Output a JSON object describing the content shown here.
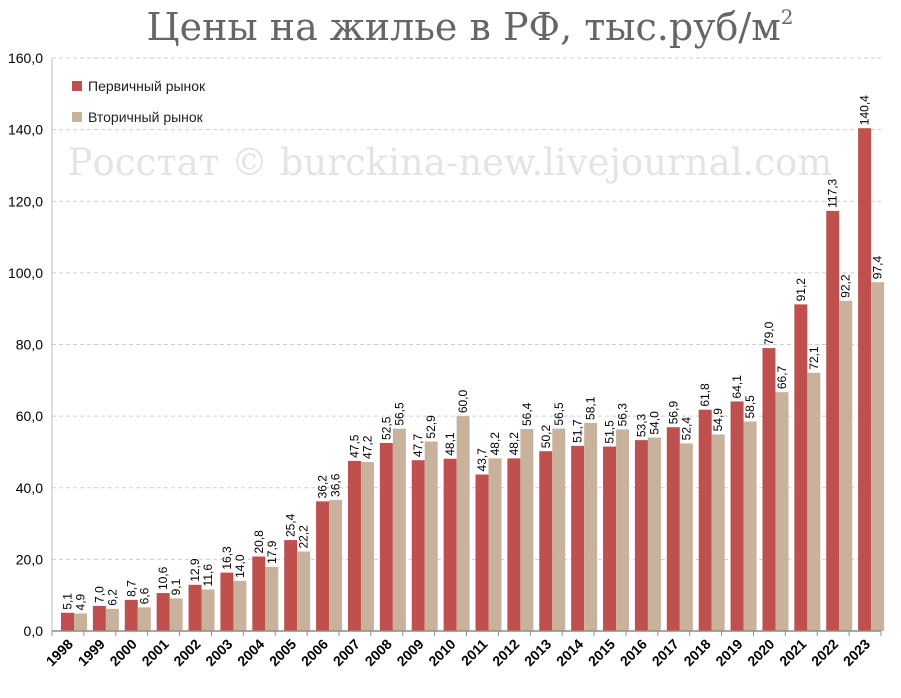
{
  "chart_data": {
    "type": "bar",
    "title": "Цены на жилье в РФ, тыс.руб/м",
    "title_superscript": "2",
    "watermark": "Росстат © burckina-new.livejournal.com",
    "categories": [
      "1998",
      "1999",
      "2000",
      "2001",
      "2002",
      "2003",
      "2004",
      "2005",
      "2006",
      "2007",
      "2008",
      "2009",
      "2010",
      "2011",
      "2012",
      "2013",
      "2014",
      "2015",
      "2016",
      "2017",
      "2018",
      "2019",
      "2020",
      "2021",
      "2022",
      "2023"
    ],
    "series": [
      {
        "name": "Первичный рынок",
        "color": "#c0504d",
        "values": [
          5.1,
          7.0,
          8.7,
          10.6,
          12.9,
          16.3,
          20.8,
          25.4,
          36.2,
          47.5,
          52.5,
          47.7,
          48.1,
          43.7,
          48.2,
          50.2,
          51.7,
          51.5,
          53.3,
          56.9,
          61.8,
          64.1,
          79.0,
          91.2,
          117.3,
          140.4
        ],
        "labels": [
          "5,1",
          "7,0",
          "8,7",
          "10,6",
          "12,9",
          "16,3",
          "20,8",
          "25,4",
          "36,2",
          "47,5",
          "52,5",
          "47,7",
          "48,1",
          "43,7",
          "48,2",
          "50,2",
          "51,7",
          "51,5",
          "53,3",
          "56,9",
          "61,8",
          "64,1",
          "79,0",
          "91,2",
          "117,3",
          "140,4"
        ]
      },
      {
        "name": "Вторичный рынок",
        "color": "#c9b29b",
        "values": [
          4.9,
          6.2,
          6.6,
          9.1,
          11.6,
          14.0,
          17.9,
          22.2,
          36.6,
          47.2,
          56.5,
          52.9,
          60.0,
          48.2,
          56.4,
          56.5,
          58.1,
          56.3,
          54.0,
          52.4,
          54.9,
          58.5,
          66.7,
          72.1,
          92.2,
          97.4
        ],
        "labels": [
          "4,9",
          "6,2",
          "6,6",
          "9,1",
          "11,6",
          "14,0",
          "17,9",
          "22,2",
          "36,6",
          "47,2",
          "56,5",
          "52,9",
          "60,0",
          "48,2",
          "56,4",
          "56,5",
          "58,1",
          "56,3",
          "54,0",
          "52,4",
          "54,9",
          "58,5",
          "66,7",
          "72,1",
          "92,2",
          "97,4"
        ]
      }
    ],
    "ylim": [
      0,
      160
    ],
    "yticks": [
      0,
      20,
      40,
      60,
      80,
      100,
      120,
      140,
      160
    ],
    "ytick_labels": [
      "0,0",
      "20,0",
      "40,0",
      "60,0",
      "80,0",
      "100,0",
      "120,0",
      "140,0",
      "160,0"
    ],
    "grid": true,
    "legend_position": "top-left",
    "xlabel": "",
    "ylabel": ""
  }
}
